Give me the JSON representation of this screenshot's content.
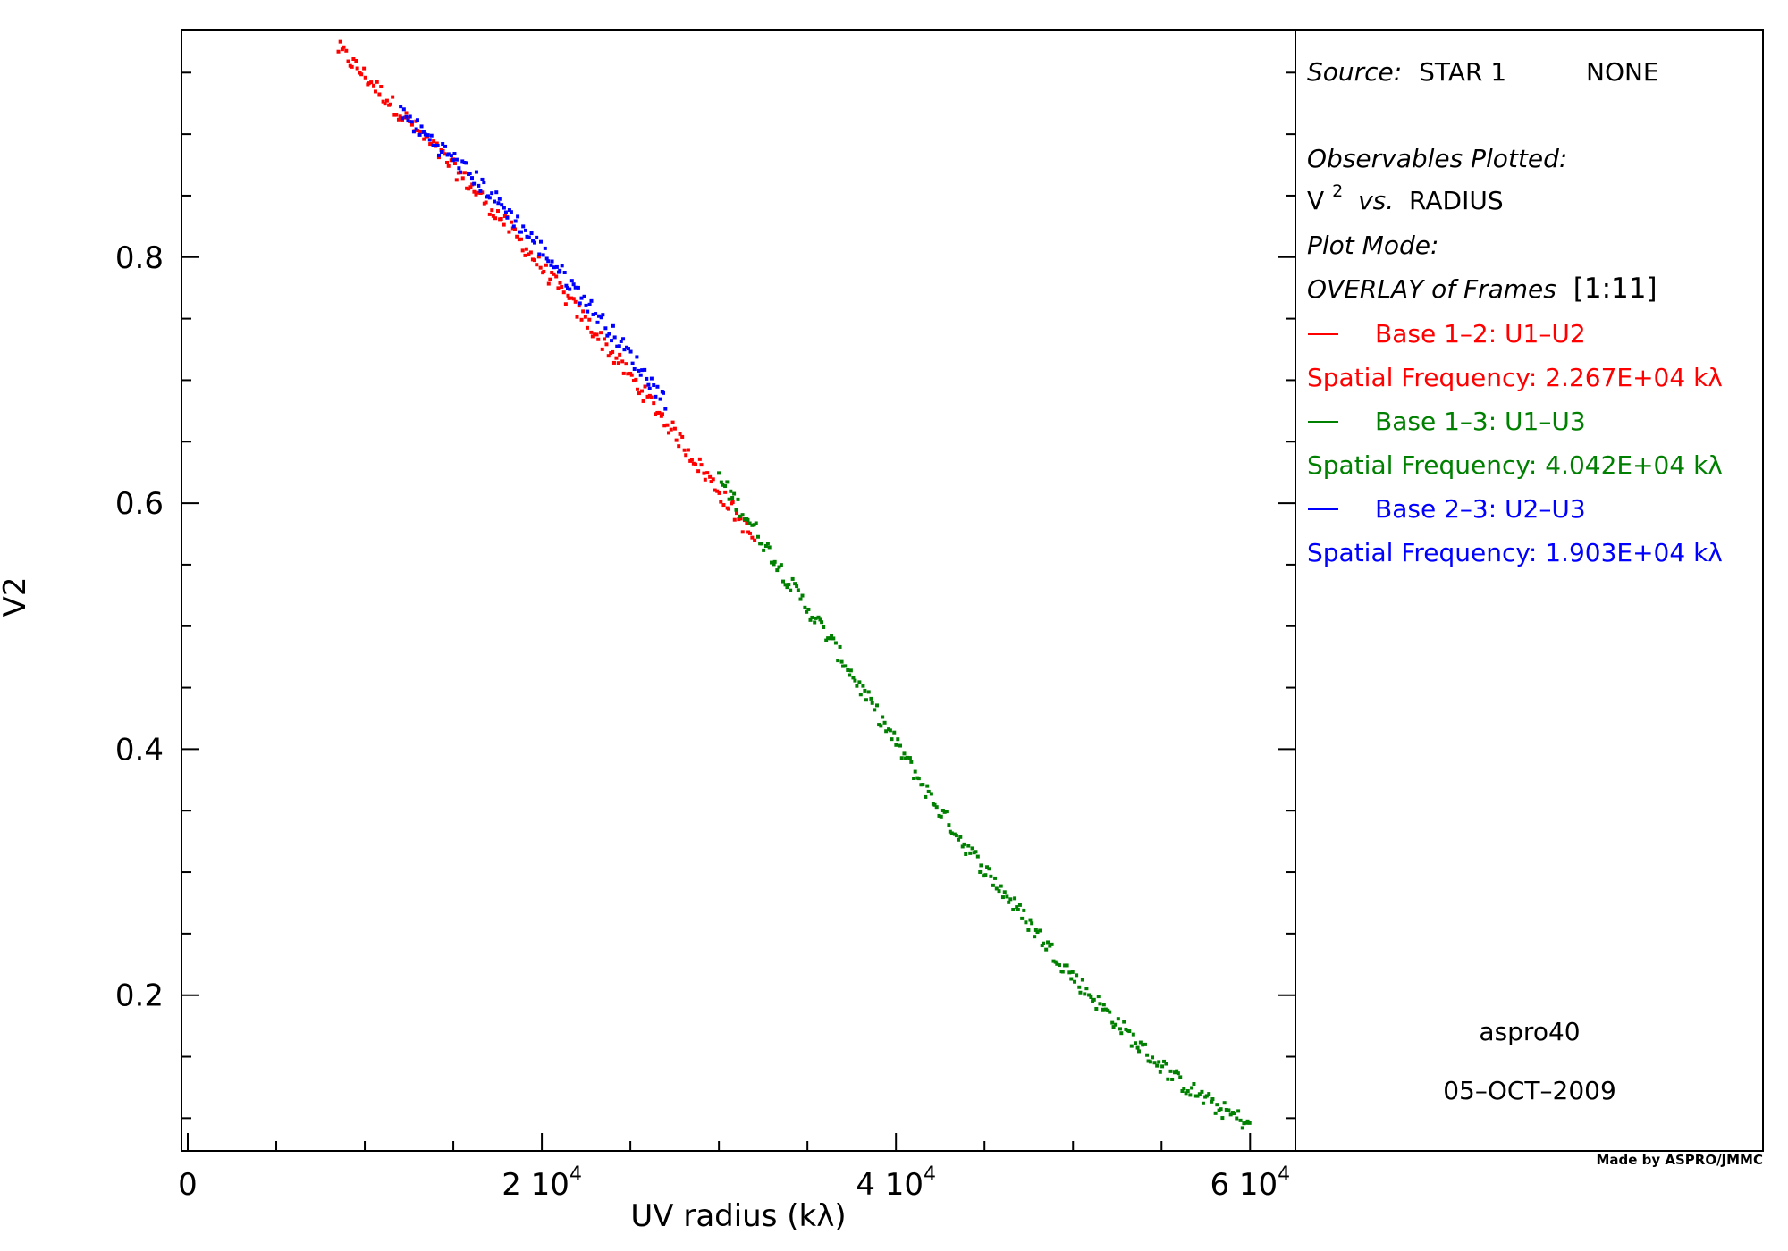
{
  "chart_data": {
    "type": "scatter",
    "xlabel": "UV radius (kλ)",
    "ylabel": "V2",
    "xlim": [
      0,
      61500
    ],
    "ylim": [
      0.085,
      0.98
    ],
    "grid": false,
    "x_ticks": [
      {
        "value": 0,
        "label": "0",
        "exp": ""
      },
      {
        "value": 20000,
        "label": "2 10",
        "exp": "4"
      },
      {
        "value": 40000,
        "label": "4 10",
        "exp": "4"
      },
      {
        "value": 60000,
        "label": "6 10",
        "exp": "4"
      }
    ],
    "y_ticks": [
      {
        "value": 0.2,
        "label": "0.2"
      },
      {
        "value": 0.4,
        "label": "0.4"
      },
      {
        "value": 0.6,
        "label": "0.6"
      },
      {
        "value": 0.8,
        "label": "0.8"
      }
    ],
    "series": [
      {
        "name": "Base 1-2: U1-U2",
        "color": "#ff0000",
        "x": [
          8500,
          9500,
          10500,
          11500,
          12500,
          13500,
          14500,
          15500,
          16500,
          17500,
          18500,
          19500,
          20500,
          21500,
          22500,
          23500,
          24500,
          25500,
          26500,
          27500,
          28500,
          29500,
          30500,
          31500,
          32000
        ],
        "y": [
          0.97,
          0.955,
          0.94,
          0.925,
          0.91,
          0.895,
          0.88,
          0.865,
          0.85,
          0.835,
          0.818,
          0.8,
          0.783,
          0.765,
          0.748,
          0.73,
          0.712,
          0.694,
          0.676,
          0.657,
          0.638,
          0.619,
          0.6,
          0.58,
          0.57
        ]
      },
      {
        "name": "Base 1-3: U1-U3",
        "color": "#008000",
        "x": [
          30000,
          32000,
          34000,
          36000,
          38000,
          40000,
          42000,
          44000,
          46000,
          48000,
          50000,
          52000,
          54000,
          56000,
          58000,
          60000
        ],
        "y": [
          0.62,
          0.58,
          0.535,
          0.495,
          0.45,
          0.405,
          0.36,
          0.32,
          0.285,
          0.25,
          0.215,
          0.185,
          0.155,
          0.13,
          0.11,
          0.095
        ]
      },
      {
        "name": "Base 2-3: U2-U3",
        "color": "#0000ff",
        "x": [
          12000,
          13000,
          14000,
          15000,
          16000,
          17000,
          18000,
          19000,
          20000,
          21000,
          22000,
          23000,
          24000,
          25000,
          26000,
          27000
        ],
        "y": [
          0.918,
          0.905,
          0.892,
          0.88,
          0.867,
          0.853,
          0.838,
          0.822,
          0.806,
          0.789,
          0.772,
          0.755,
          0.738,
          0.72,
          0.701,
          0.683
        ]
      }
    ]
  },
  "legend": {
    "source_label": "Source:",
    "source_name": "STAR 1",
    "source_extra": "NONE",
    "observables_label": "Observables Plotted:",
    "v2_symbol": "V",
    "v2_exp": "2",
    "vs_label": "vs.",
    "radius_label": "RADIUS",
    "plot_mode_label": "Plot Mode:",
    "overlay_label": "OVERLAY of Frames",
    "frames": "[1:11]",
    "bases": [
      {
        "label": "Base 1–2: U1–U2",
        "freq": "Spatial Frequency: 2.267E+04 kλ",
        "color": "#ff0000"
      },
      {
        "label": "Base 1–3: U1–U3",
        "freq": "Spatial Frequency: 4.042E+04 kλ",
        "color": "#008000"
      },
      {
        "label": "Base 2–3: U2–U3",
        "freq": "Spatial Frequency: 1.903E+04 kλ",
        "color": "#0000ff"
      }
    ],
    "program": "aspro40",
    "date": "05–OCT–2009"
  },
  "credit": "Made by ASPRO/JMMC"
}
